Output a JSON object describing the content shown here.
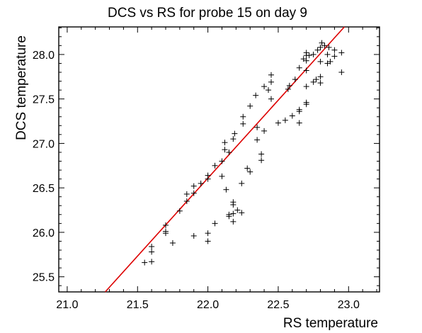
{
  "chart_data": {
    "type": "scatter",
    "title": "DCS vs RS for probe 15 on day 9",
    "xlabel": "RS temperature",
    "ylabel": "DCS temperature",
    "xlim": [
      20.94,
      23.22
    ],
    "ylim": [
      25.33,
      28.31
    ],
    "xticks": [
      21.0,
      21.5,
      22.0,
      22.5,
      23.0
    ],
    "xtick_labels": [
      "21.0",
      "21.5",
      "22.0",
      "22.5",
      "23.0"
    ],
    "yticks": [
      25.5,
      26.0,
      26.5,
      27.0,
      27.5,
      28.0
    ],
    "ytick_labels": [
      "25.5",
      "26.0",
      "26.5",
      "27.0",
      "27.5",
      "28.0"
    ],
    "grid": false,
    "marker": "plus",
    "marker_color": "#000000",
    "fit_line": {
      "color": "#dd0000",
      "points": [
        [
          21.27,
          25.33
        ],
        [
          22.97,
          28.31
        ]
      ]
    },
    "points": [
      [
        21.55,
        25.66
      ],
      [
        21.6,
        25.67
      ],
      [
        21.6,
        25.78
      ],
      [
        21.6,
        25.84
      ],
      [
        21.7,
        25.99
      ],
      [
        21.7,
        26.01
      ],
      [
        21.7,
        26.08
      ],
      [
        21.75,
        25.88
      ],
      [
        21.8,
        26.24
      ],
      [
        21.85,
        26.35
      ],
      [
        21.85,
        26.43
      ],
      [
        21.9,
        26.44
      ],
      [
        21.9,
        26.52
      ],
      [
        21.9,
        25.96
      ],
      [
        21.95,
        26.55
      ],
      [
        22.0,
        26.6
      ],
      [
        22.0,
        26.64
      ],
      [
        22.0,
        25.99
      ],
      [
        22.0,
        25.9
      ],
      [
        22.05,
        26.1
      ],
      [
        22.05,
        26.75
      ],
      [
        22.1,
        26.63
      ],
      [
        22.1,
        26.8
      ],
      [
        22.12,
        26.93
      ],
      [
        22.12,
        27.01
      ],
      [
        22.13,
        26.48
      ],
      [
        22.15,
        26.9
      ],
      [
        22.15,
        26.18
      ],
      [
        22.15,
        26.2
      ],
      [
        22.18,
        26.12
      ],
      [
        22.18,
        26.21
      ],
      [
        22.18,
        26.31
      ],
      [
        22.18,
        26.34
      ],
      [
        22.18,
        27.05
      ],
      [
        22.19,
        27.11
      ],
      [
        22.21,
        26.25
      ],
      [
        22.24,
        26.22
      ],
      [
        22.24,
        26.55
      ],
      [
        22.25,
        27.22
      ],
      [
        22.25,
        27.3
      ],
      [
        22.28,
        26.72
      ],
      [
        22.3,
        26.68
      ],
      [
        22.3,
        27.42
      ],
      [
        22.34,
        27.54
      ],
      [
        22.35,
        27.04
      ],
      [
        22.35,
        27.18
      ],
      [
        22.38,
        26.81
      ],
      [
        22.38,
        26.88
      ],
      [
        22.4,
        27.14
      ],
      [
        22.4,
        27.64
      ],
      [
        22.43,
        27.6
      ],
      [
        22.45,
        27.5
      ],
      [
        22.45,
        27.69
      ],
      [
        22.45,
        27.77
      ],
      [
        22.5,
        27.23
      ],
      [
        22.55,
        27.26
      ],
      [
        22.57,
        27.61
      ],
      [
        22.58,
        27.65
      ],
      [
        22.6,
        27.31
      ],
      [
        22.62,
        27.72
      ],
      [
        22.65,
        27.23
      ],
      [
        22.65,
        27.36
      ],
      [
        22.65,
        27.38
      ],
      [
        22.65,
        27.85
      ],
      [
        22.68,
        27.95
      ],
      [
        22.7,
        27.44
      ],
      [
        22.7,
        27.46
      ],
      [
        22.7,
        27.64
      ],
      [
        22.7,
        27.82
      ],
      [
        22.7,
        27.93
      ],
      [
        22.7,
        27.99
      ],
      [
        22.7,
        28.02
      ],
      [
        22.72,
        27.99
      ],
      [
        22.75,
        27.69
      ],
      [
        22.75,
        28.0
      ],
      [
        22.77,
        27.72
      ],
      [
        22.78,
        28.05
      ],
      [
        22.8,
        27.68
      ],
      [
        22.8,
        27.75
      ],
      [
        22.8,
        27.92
      ],
      [
        22.8,
        28.08
      ],
      [
        22.81,
        28.13
      ],
      [
        22.83,
        28.1
      ],
      [
        22.85,
        27.9
      ],
      [
        22.85,
        28.0
      ],
      [
        22.86,
        28.08
      ],
      [
        22.87,
        27.92
      ],
      [
        22.9,
        27.98
      ],
      [
        22.9,
        28.05
      ],
      [
        22.95,
        28.02
      ],
      [
        22.95,
        27.8
      ]
    ]
  }
}
